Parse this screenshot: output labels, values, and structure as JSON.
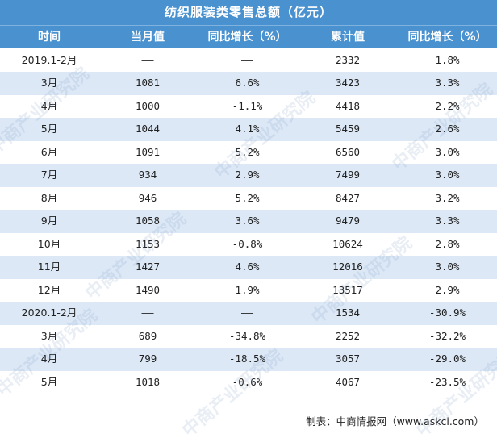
{
  "table": {
    "title": "纺织服装类零售总额（亿元）",
    "headers": [
      "时间",
      "当月值",
      "同比增长（%）",
      "累计值",
      "同比增长（%）"
    ],
    "rows": [
      [
        "2019.1-2月",
        "——",
        "——",
        "2332",
        "1.8%"
      ],
      [
        "3月",
        "1081",
        "6.6%",
        "3423",
        "3.3%"
      ],
      [
        "4月",
        "1000",
        "-1.1%",
        "4418",
        "2.2%"
      ],
      [
        "5月",
        "1044",
        "4.1%",
        "5459",
        "2.6%"
      ],
      [
        "6月",
        "1091",
        "5.2%",
        "6560",
        "3.0%"
      ],
      [
        "7月",
        "934",
        "2.9%",
        "7499",
        "3.0%"
      ],
      [
        "8月",
        "946",
        "5.2%",
        "8427",
        "3.2%"
      ],
      [
        "9月",
        "1058",
        "3.6%",
        "9479",
        "3.3%"
      ],
      [
        "10月",
        "1153",
        "-0.8%",
        "10624",
        "2.8%"
      ],
      [
        "11月",
        "1427",
        "4.6%",
        "12016",
        "3.0%"
      ],
      [
        "12月",
        "1490",
        "1.9%",
        "13517",
        "2.9%"
      ],
      [
        "2020.1-2月",
        "——",
        "——",
        "1534",
        "-30.9%"
      ],
      [
        "3月",
        "689",
        "-34.8%",
        "2252",
        "-32.2%"
      ],
      [
        "4月",
        "799",
        "-18.5%",
        "3057",
        "-29.0%"
      ],
      [
        "5月",
        "1018",
        "-0.6%",
        "4067",
        "-23.5%"
      ]
    ]
  },
  "footer": "制表：中商情报网（www.askci.com）",
  "watermark": "中商产业研究院",
  "colors": {
    "header_bg": "#4a92cf",
    "stripe": "#dce8f6"
  },
  "chart_data": {
    "type": "table",
    "title": "纺织服装类零售总额（亿元）",
    "columns": [
      "时间",
      "当月值",
      "同比增长（%）",
      "累计值",
      "同比增长（%）"
    ],
    "rows": [
      [
        "2019.1-2月",
        null,
        null,
        2332,
        1.8
      ],
      [
        "3月",
        1081,
        6.6,
        3423,
        3.3
      ],
      [
        "4月",
        1000,
        -1.1,
        4418,
        2.2
      ],
      [
        "5月",
        1044,
        4.1,
        5459,
        2.6
      ],
      [
        "6月",
        1091,
        5.2,
        6560,
        3.0
      ],
      [
        "7月",
        934,
        2.9,
        7499,
        3.0
      ],
      [
        "8月",
        946,
        5.2,
        8427,
        3.2
      ],
      [
        "9月",
        1058,
        3.6,
        9479,
        3.3
      ],
      [
        "10月",
        1153,
        -0.8,
        10624,
        2.8
      ],
      [
        "11月",
        1427,
        4.6,
        12016,
        3.0
      ],
      [
        "12月",
        1490,
        1.9,
        13517,
        2.9
      ],
      [
        "2020.1-2月",
        null,
        null,
        1534,
        -30.9
      ],
      [
        "3月",
        689,
        -34.8,
        2252,
        -32.2
      ],
      [
        "4月",
        799,
        -18.5,
        3057,
        -29.0
      ],
      [
        "5月",
        1018,
        -0.6,
        4067,
        -23.5
      ]
    ]
  }
}
